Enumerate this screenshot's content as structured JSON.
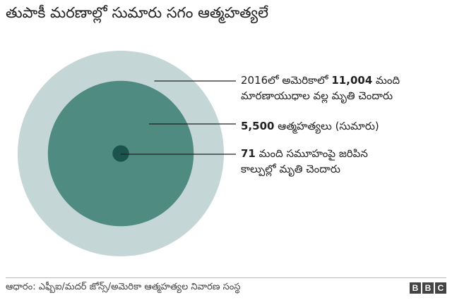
{
  "title": "తుపాకీ మరణాల్లో సుమారు సగం ఆత్మహత్యలే",
  "chart_data": {
    "type": "bubble",
    "title": "తుపాకీ మరణాల్లో సుమారు సగం ఆత్మహత్యలే",
    "series": [
      {
        "value": 11004,
        "value_label": "11,004",
        "prefix": "2016లో అమెరికాలో",
        "suffix": "మంది",
        "line2": "మారణాయుధాల వల్ల మృతి చెందారు",
        "color": "#c5d6d6"
      },
      {
        "value": 5500,
        "value_label": "5,500",
        "prefix": "",
        "suffix": "ఆత్మహత్యలు (సుమారు)",
        "line2": "",
        "color": "#4f8b81"
      },
      {
        "value": 71,
        "value_label": "71",
        "prefix": "",
        "suffix": "మంది సమూహంపై జరిపిన",
        "line2": "కాల్పుల్లో మృతి చెందారు",
        "color": "#1b544c"
      }
    ]
  },
  "footer": {
    "source": "ఆధారం: ఎఫ్బీఐ/మదర్ జోన్స్/అమెరికా ఆత్మహత్యల నివారణ సంస్థ",
    "logo": [
      "B",
      "B",
      "C"
    ]
  }
}
